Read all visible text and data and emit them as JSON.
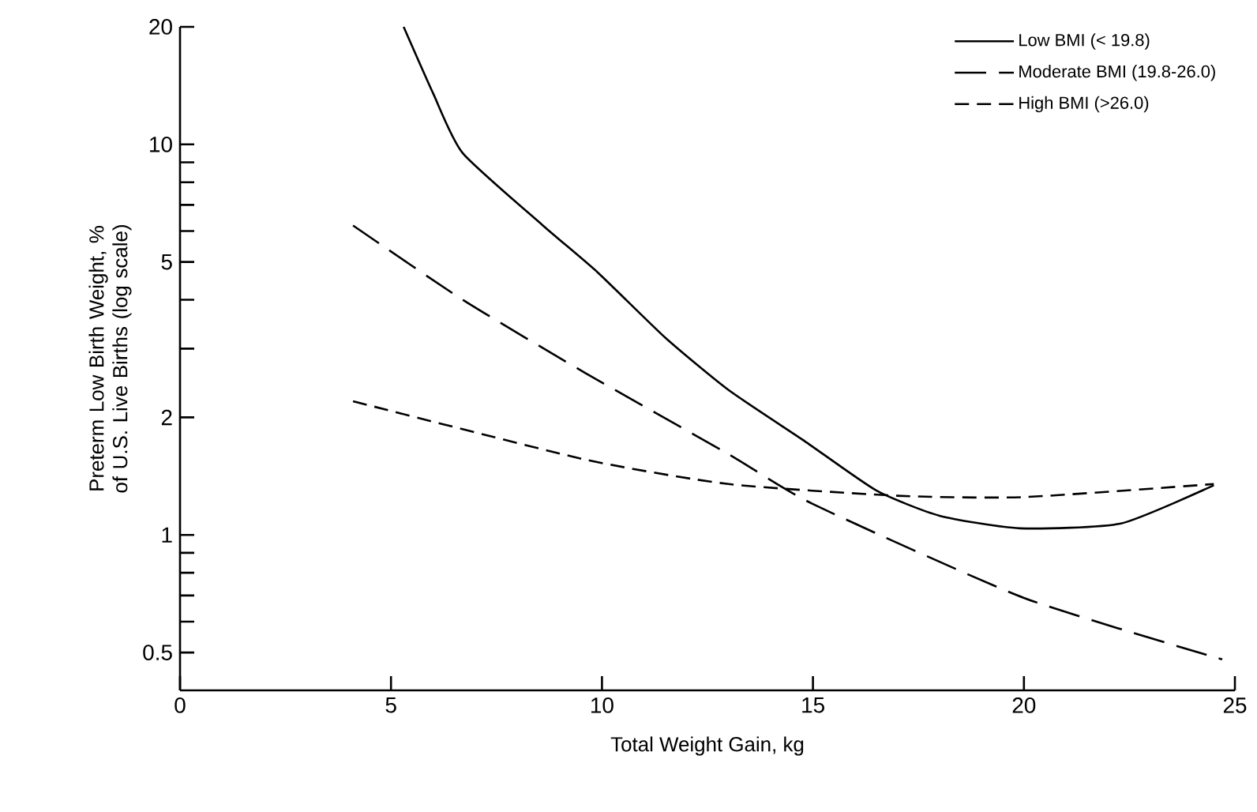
{
  "chart_data": {
    "type": "line",
    "xlabel": "Total Weight Gain, kg",
    "ylabel": "Preterm Low Birth Weight, % of U.S. Live Births (log scale)",
    "log": "y",
    "legend": "top right",
    "grid": false,
    "marker": "none",
    "xlim": [
      0,
      25
    ],
    "xticks": [
      0,
      5,
      10,
      15,
      20,
      25
    ],
    "ylim": [
      0.4,
      20
    ],
    "yticks": [
      0.5,
      {
        "value": 0.6,
        "label": null
      },
      {
        "value": 0.7,
        "label": null
      },
      {
        "value": 0.8,
        "label": null
      },
      {
        "value": 0.9,
        "label": null
      },
      1,
      2,
      {
        "value": 3,
        "label": null
      },
      {
        "value": 4,
        "label": null
      },
      5,
      {
        "value": 6,
        "label": null
      },
      {
        "value": 7,
        "label": null
      },
      {
        "value": 8,
        "label": null
      },
      {
        "value": 9,
        "label": null
      },
      10,
      20
    ],
    "series": [
      {
        "name": "Low BMI (< 19.8)",
        "color": "#000000",
        "line_style": "solid",
        "x": [
          5.3,
          6.0,
          6.7,
          8.6,
          9.9,
          11.5,
          13.0,
          14.8,
          16.5,
          18.0,
          19.9,
          22.3,
          24.5
        ],
        "values": [
          20,
          13.5,
          9.5,
          6.2,
          4.7,
          3.2,
          2.35,
          1.74,
          1.3,
          1.12,
          1.04,
          1.07,
          1.34
        ]
      },
      {
        "name": "Moderate BMI (19.8-26.0)",
        "color": "#000000",
        "line_style": "dashed",
        "x": [
          4.1,
          6.7,
          9.6,
          13.0,
          15.0,
          20.0,
          24.7
        ],
        "values": [
          6.2,
          4.0,
          2.6,
          1.61,
          1.2,
          0.69,
          0.48
        ]
      },
      {
        "name": "High BMI (>26.0)",
        "color": "#000000",
        "line_style": "dashed",
        "x": [
          4.1,
          9.6,
          13.0,
          17.0,
          20.0,
          24.5
        ],
        "values": [
          2.2,
          1.56,
          1.35,
          1.26,
          1.25,
          1.35
        ]
      }
    ]
  }
}
